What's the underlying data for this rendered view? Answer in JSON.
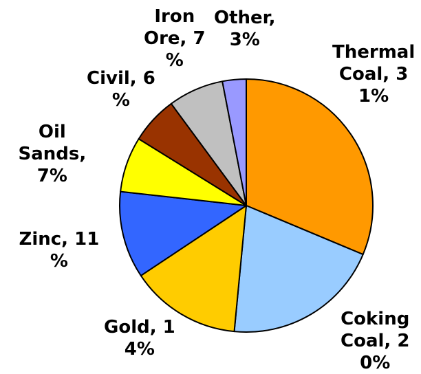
{
  "chart_data": {
    "type": "pie",
    "title": "",
    "start_angle_deg": 0,
    "direction": "clockwise",
    "slices": [
      {
        "label": "Thermal Coal",
        "value": 31,
        "color": "#FF9900",
        "text_lines": [
          "Thermal",
          "Coal, 3",
          "1%"
        ]
      },
      {
        "label": "Coking Coal",
        "value": 20,
        "color": "#99CCFF",
        "text_lines": [
          "Coking",
          "Coal, 2",
          "0%"
        ]
      },
      {
        "label": "Gold",
        "value": 14,
        "color": "#FFCC00",
        "text_lines": [
          "Gold, 1",
          "4%"
        ]
      },
      {
        "label": "Zinc",
        "value": 11,
        "color": "#3366FF",
        "text_lines": [
          "Zinc, 11",
          "%"
        ]
      },
      {
        "label": "Oil Sands",
        "value": 7,
        "color": "#FFFF00",
        "text_lines": [
          "Oil",
          "Sands,",
          "7%"
        ]
      },
      {
        "label": "Civil",
        "value": 6,
        "color": "#993300",
        "text_lines": [
          "Civil, 6",
          "%"
        ]
      },
      {
        "label": "Iron Ore",
        "value": 7,
        "color": "#C0C0C0",
        "text_lines": [
          "Iron",
          "Ore, 7",
          "%"
        ]
      },
      {
        "label": "Other",
        "value": 3,
        "color": "#9999FF",
        "text_lines": [
          "Other,",
          "3%"
        ]
      }
    ],
    "legend": "none"
  }
}
